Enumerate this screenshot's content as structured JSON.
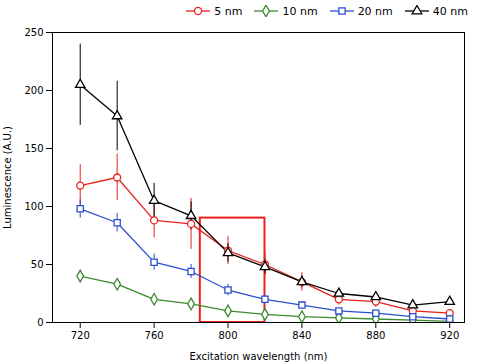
{
  "chart_data": {
    "type": "line",
    "x": [
      720,
      740,
      760,
      780,
      800,
      820,
      840,
      860,
      880,
      900,
      920
    ],
    "series": [
      {
        "name": "5 nm",
        "color": "#e8211d",
        "marker": "circle",
        "values": [
          118,
          125,
          88,
          85,
          62,
          50,
          35,
          20,
          18,
          10,
          8
        ],
        "yerr": [
          18,
          20,
          15,
          22,
          12,
          10,
          8,
          5,
          5,
          4,
          3
        ]
      },
      {
        "name": "10 nm",
        "color": "#3c8a2e",
        "marker": "diamond",
        "values": [
          40,
          33,
          20,
          16,
          10,
          7,
          5,
          4,
          3,
          2,
          1
        ],
        "yerr": [
          5,
          4,
          4,
          3,
          2,
          2,
          1,
          1,
          1,
          1,
          1
        ]
      },
      {
        "name": "20 nm",
        "color": "#2a4fce",
        "marker": "square",
        "values": [
          98,
          86,
          52,
          44,
          28,
          20,
          15,
          10,
          8,
          5,
          3
        ],
        "yerr": [
          8,
          8,
          7,
          6,
          5,
          4,
          3,
          2,
          2,
          2,
          1
        ]
      },
      {
        "name": "40 nm",
        "color": "#000000",
        "marker": "triangle",
        "values": [
          205,
          178,
          105,
          92,
          60,
          48,
          35,
          25,
          22,
          15,
          18
        ],
        "yerr": [
          35,
          30,
          15,
          12,
          8,
          6,
          5,
          4,
          4,
          3,
          3
        ]
      }
    ],
    "xlabel": "Excitation wavelength (nm)",
    "ylabel": "Luminescence (A.U.)",
    "xlim": [
      705,
      928
    ],
    "ylim": [
      0,
      250
    ],
    "xticks": [
      720,
      760,
      800,
      840,
      880,
      920
    ],
    "yticks": [
      0,
      50,
      100,
      150,
      200,
      250
    ],
    "grid": false,
    "legend": "upper right",
    "annotations": [
      {
        "type": "rect",
        "x": [
          785,
          820
        ],
        "y": [
          0,
          90
        ],
        "color": "#e8211d"
      }
    ]
  }
}
